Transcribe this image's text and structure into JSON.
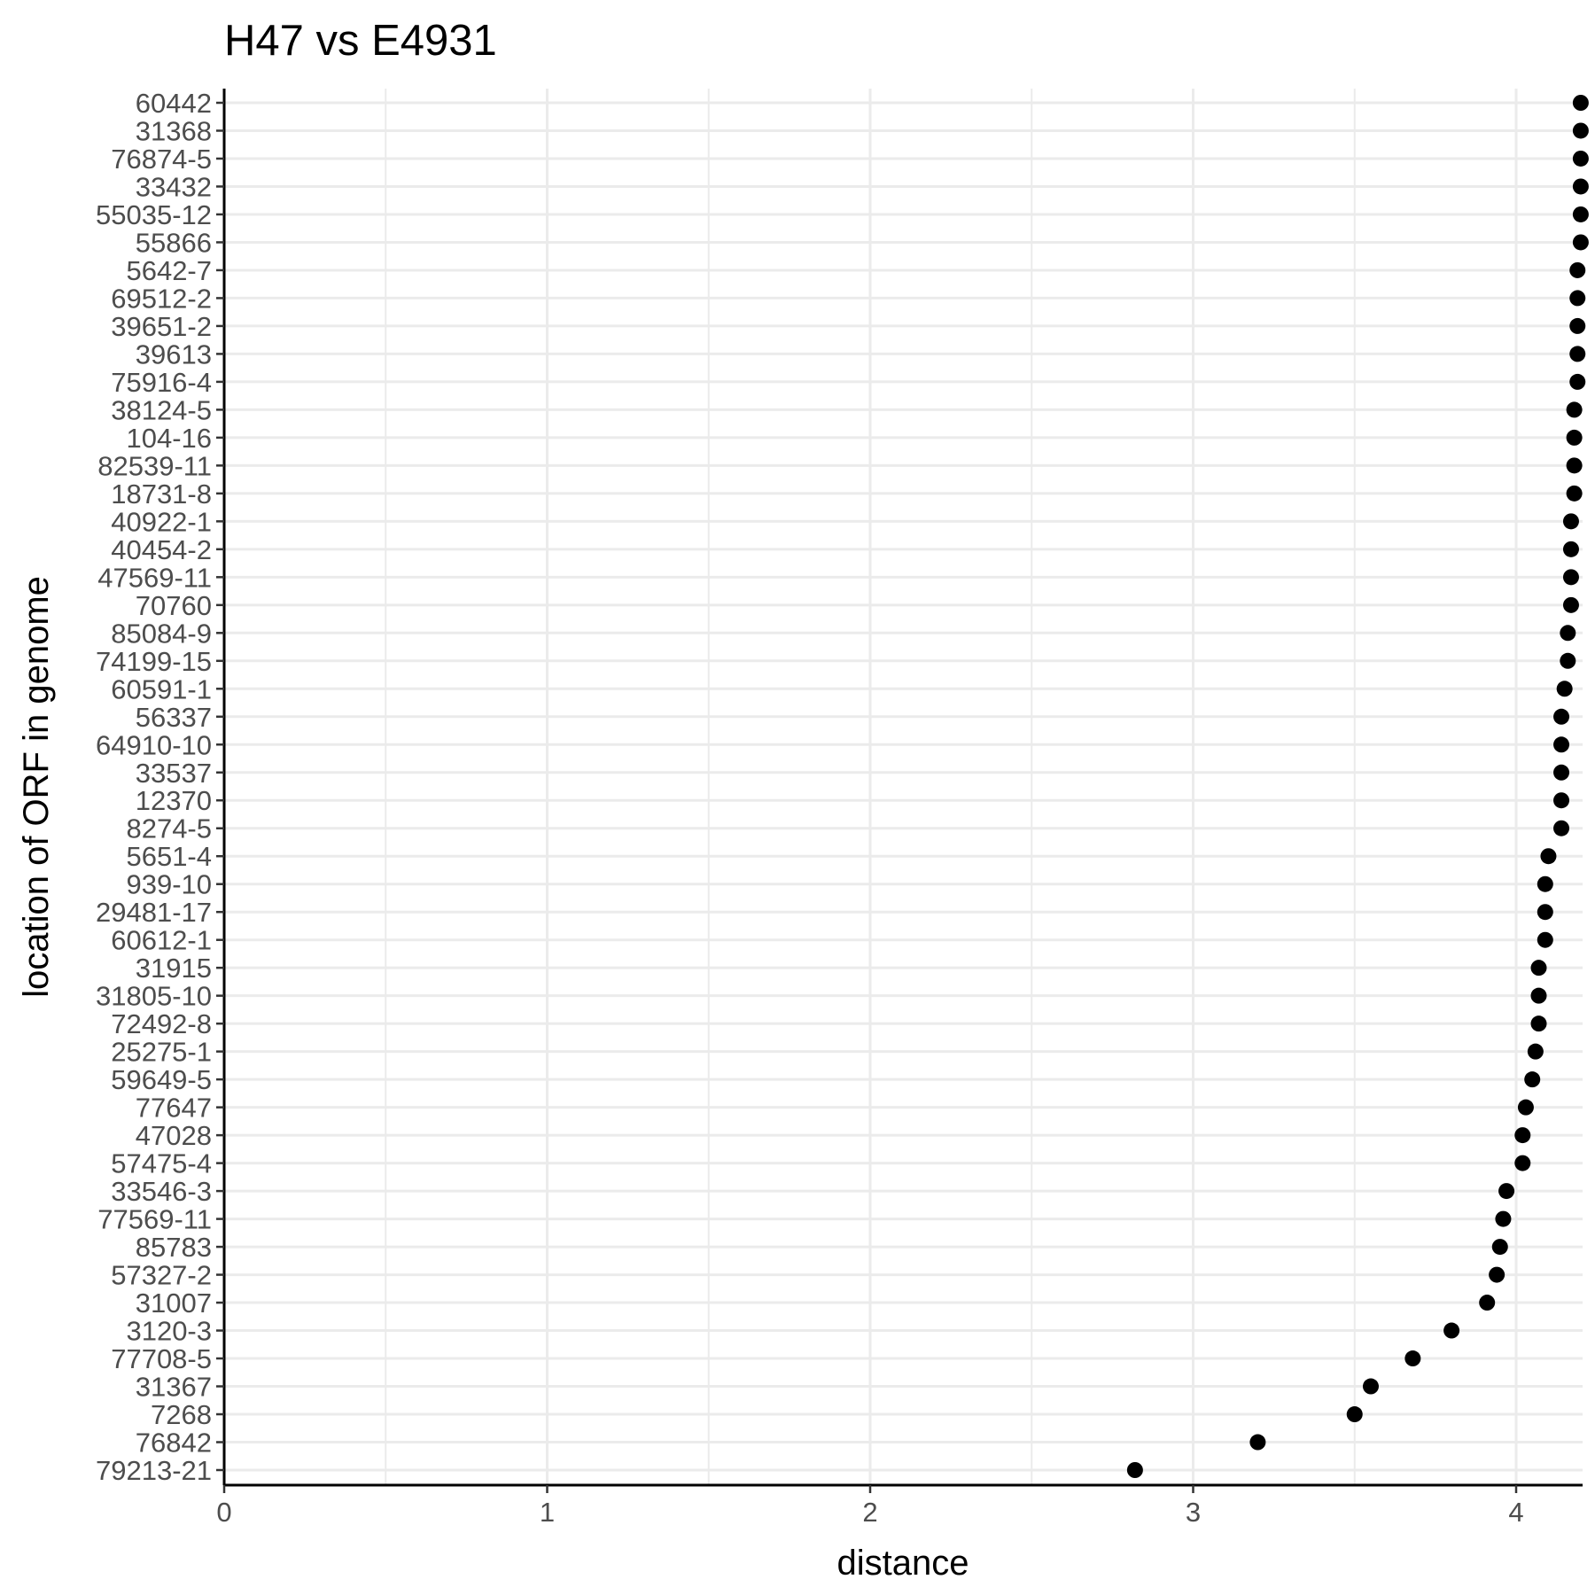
{
  "chart_data": {
    "type": "scatter",
    "title": "H47 vs E4931",
    "xlabel": "distance",
    "ylabel": "location of ORF in genome",
    "xlim": [
      0,
      4.2
    ],
    "x_ticks": [
      0,
      1,
      2,
      3,
      4
    ],
    "x_tick_labels": [
      "0",
      "1",
      "2",
      "3",
      "4"
    ],
    "grid": true,
    "legend": "none",
    "point_color": "#000000",
    "grid_color": "#ebebeb",
    "categories": [
      "60442",
      "31368",
      "76874-5",
      "33432",
      "55035-12",
      "55866",
      "5642-7",
      "69512-2",
      "39651-2",
      "39613",
      "75916-4",
      "38124-5",
      "104-16",
      "82539-11",
      "18731-8",
      "40922-1",
      "40454-2",
      "47569-11",
      "70760",
      "85084-9",
      "74199-15",
      "60591-1",
      "56337",
      "64910-10",
      "33537",
      "12370",
      "8274-5",
      "5651-4",
      "939-10",
      "29481-17",
      "60612-1",
      "31915",
      "31805-10",
      "72492-8",
      "25275-1",
      "59649-5",
      "77647",
      "47028",
      "57475-4",
      "33546-3",
      "77569-11",
      "85783",
      "57327-2",
      "31007",
      "3120-3",
      "77708-5",
      "31367",
      "7268",
      "76842",
      "79213-21"
    ],
    "values": [
      4.2,
      4.2,
      4.2,
      4.2,
      4.2,
      4.2,
      4.19,
      4.19,
      4.19,
      4.19,
      4.19,
      4.18,
      4.18,
      4.18,
      4.18,
      4.17,
      4.17,
      4.17,
      4.17,
      4.16,
      4.16,
      4.15,
      4.14,
      4.14,
      4.14,
      4.14,
      4.14,
      4.1,
      4.09,
      4.09,
      4.09,
      4.07,
      4.07,
      4.07,
      4.06,
      4.05,
      4.03,
      4.02,
      4.02,
      3.97,
      3.96,
      3.95,
      3.94,
      3.91,
      3.8,
      3.68,
      3.55,
      3.5,
      3.2,
      2.82
    ]
  }
}
